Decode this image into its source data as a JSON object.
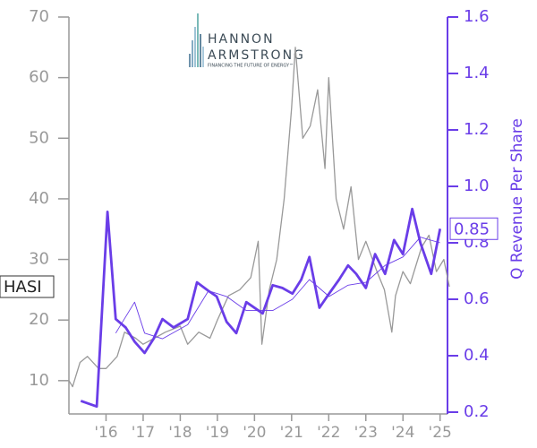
{
  "chart_data": {
    "type": "line",
    "logo": {
      "line1": "HANNON",
      "line2": "ARMSTRONG",
      "tagline": "FINANCING THE FUTURE OF ENERGY™"
    },
    "y2label": "Q Revenue Per Share",
    "xlim": [
      2015,
      2025.2
    ],
    "xticks": [
      {
        "value": 2016,
        "label": "'16"
      },
      {
        "value": 2017,
        "label": "'17"
      },
      {
        "value": 2018,
        "label": "'18"
      },
      {
        "value": 2019,
        "label": "'19"
      },
      {
        "value": 2020,
        "label": "'20"
      },
      {
        "value": 2021,
        "label": "'21"
      },
      {
        "value": 2022,
        "label": "'22"
      },
      {
        "value": 2023,
        "label": "'23"
      },
      {
        "value": 2024,
        "label": "'24"
      },
      {
        "value": 2025,
        "label": "'25"
      }
    ],
    "ylim": [
      4.8,
      70
    ],
    "yticks": [
      10,
      20,
      30,
      40,
      50,
      60,
      70
    ],
    "y2lim": [
      0.2,
      1.6
    ],
    "y2ticks": [
      0.2,
      0.4,
      0.6,
      0.8,
      {
        "value": 1,
        "label": "1.0"
      },
      1.2,
      1.4,
      1.6
    ],
    "series": [
      {
        "name": "HASI",
        "color": "#999999",
        "x": [
          2015.0,
          2015.1,
          2015.3,
          2015.5,
          2015.8,
          2016.0,
          2016.3,
          2016.5,
          2016.8,
          2017.0,
          2017.3,
          2017.6,
          2018.0,
          2018.2,
          2018.5,
          2018.8,
          2019.0,
          2019.3,
          2019.6,
          2019.9,
          2020.1,
          2020.2,
          2020.4,
          2020.6,
          2020.8,
          2021.0,
          2021.1,
          2021.3,
          2021.5,
          2021.7,
          2021.9,
          2022.0,
          2022.2,
          2022.4,
          2022.6,
          2022.8,
          2023.0,
          2023.3,
          2023.5,
          2023.7,
          2023.8,
          2024.0,
          2024.2,
          2024.5,
          2024.7,
          2024.9,
          2025.1,
          2025.25
        ],
        "values": [
          10,
          9,
          13,
          14,
          12,
          12,
          14,
          18,
          17,
          16,
          17,
          18,
          19,
          16,
          18,
          17,
          20,
          24,
          25,
          27,
          33,
          16,
          25,
          30,
          40,
          55,
          65,
          50,
          52,
          58,
          45,
          60,
          40,
          35,
          42,
          30,
          33,
          28,
          25,
          18,
          24,
          28,
          26,
          32,
          34,
          28,
          30,
          25.5
        ]
      },
      {
        "color": "#6a3de8",
        "axis": "y2",
        "x": [
          2015.32,
          2015.75,
          2016.04,
          2016.26,
          2016.53,
          2016.77,
          2017.04,
          2017.28,
          2017.52,
          2017.82,
          2018.2,
          2018.45,
          2018.76,
          2018.98,
          2019.25,
          2019.51,
          2019.78,
          2020.22,
          2020.49,
          2020.75,
          2021.02,
          2021.26,
          2021.48,
          2021.75,
          2022.01,
          2022.28,
          2022.52,
          2022.74,
          2023.0,
          2023.25,
          2023.52,
          2023.76,
          2024.0,
          2024.25,
          2024.47,
          2024.76,
          2025.0
        ],
        "values": [
          0.24,
          0.22,
          0.91,
          0.53,
          0.5,
          0.45,
          0.41,
          0.46,
          0.53,
          0.5,
          0.53,
          0.66,
          0.63,
          0.61,
          0.52,
          0.48,
          0.59,
          0.55,
          0.65,
          0.64,
          0.62,
          0.67,
          0.75,
          0.57,
          0.62,
          0.67,
          0.72,
          0.69,
          0.64,
          0.76,
          0.69,
          0.81,
          0.76,
          0.92,
          0.8,
          0.69,
          0.85
        ]
      },
      {
        "color": "#6a3de8",
        "axis": "y2",
        "x": [
          2016.26,
          2016.77,
          2017.04,
          2017.52,
          2018.2,
          2018.76,
          2019.25,
          2019.78,
          2020.49,
          2021.02,
          2021.48,
          2022.01,
          2022.52,
          2023.0,
          2023.52,
          2024.0,
          2024.47,
          2025.0
        ],
        "values": [
          0.48,
          0.59,
          0.48,
          0.46,
          0.51,
          0.63,
          0.61,
          0.56,
          0.56,
          0.6,
          0.67,
          0.61,
          0.65,
          0.66,
          0.72,
          0.75,
          0.82,
          0.8
        ]
      }
    ]
  }
}
